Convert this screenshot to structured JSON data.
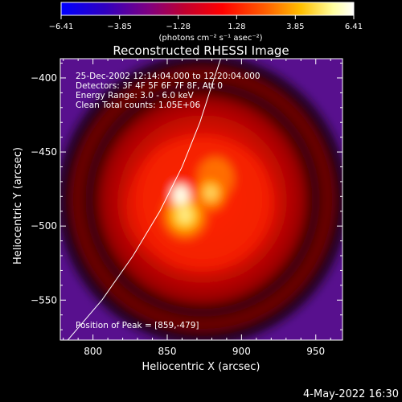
{
  "chart_data": {
    "type": "heatmap",
    "title": "Reconstructed RHESSI Image",
    "xlabel": "Heliocentric X (arcsec)",
    "ylabel": "Heliocentric Y (arcsec)",
    "xlim": [
      778,
      968
    ],
    "ylim": [
      -577,
      -387
    ],
    "x_ticks": [
      800,
      850,
      900,
      950
    ],
    "y_ticks": [
      -400,
      -450,
      -500,
      -550
    ],
    "x_tick_labels": [
      "800",
      "850",
      "900",
      "950"
    ],
    "y_tick_labels": [
      "−400",
      "−450",
      "−500",
      "−550"
    ],
    "colorbar": {
      "label": "(photons cm⁻² s⁻¹ asec⁻²)",
      "range": [
        -6.41,
        6.41
      ],
      "ticks": [
        -6.41,
        -3.85,
        -1.28,
        1.28,
        3.85,
        6.41
      ],
      "tick_labels": [
        "−6.41",
        "−3.85",
        "−1.28",
        "1.28",
        "3.85",
        "6.41"
      ],
      "colormap": [
        "#0000ff",
        "#3000c0",
        "#800080",
        "#c00030",
        "#ff0000",
        "#ff6000",
        "#ffc000",
        "#ffffa0",
        "#ffffff"
      ]
    },
    "annotations": [
      "25-Dec-2002 12:14:04.000 to 12:20:04.000",
      "Detectors: 3F 4F 5F 6F 7F 8F, Att 0",
      "Energy Range: 3.0 - 6.0 keV",
      "Clean     Total counts: 1.05E+06"
    ],
    "peak_label": "Position of Peak = [859,-479]",
    "peak": [
      859,
      -479
    ],
    "limb_curve": [
      [
        783,
        -577
      ],
      [
        806,
        -550
      ],
      [
        827,
        -520
      ],
      [
        845,
        -490
      ],
      [
        860,
        -460
      ],
      [
        872,
        -430
      ],
      [
        880,
        -405
      ],
      [
        886,
        -387
      ]
    ],
    "grid": false
  },
  "footer": {
    "date": "4-May-2022 16:30"
  }
}
